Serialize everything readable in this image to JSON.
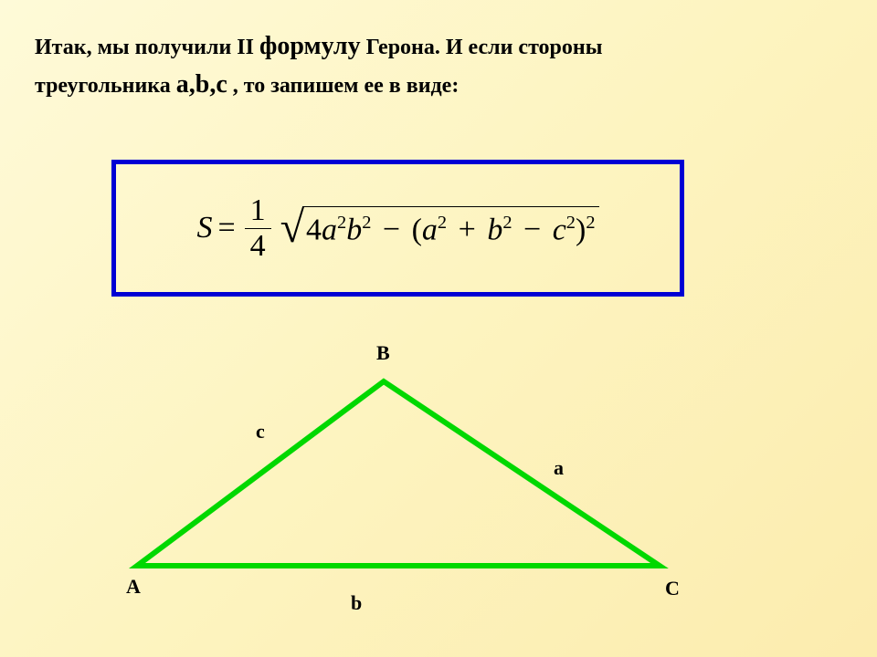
{
  "intro": {
    "line1_a": "Итак, мы получили II ",
    "line1_b": "формулу",
    "line1_c": " Герона. И если стороны",
    "line2_a": "треугольника ",
    "line2_b": "a,b,c",
    "line2_c": " , то запишем ее в виде:"
  },
  "formula": {
    "S": "S",
    "eq": "=",
    "frac_num": "1",
    "frac_den": "4",
    "coef": "4",
    "a": "a",
    "b": "b",
    "c": "c",
    "sq": "2",
    "minus": "−",
    "plus": "+",
    "lp": "(",
    "rp": ")"
  },
  "formula_box": {
    "border_color": "#0000d4",
    "border_width": 5
  },
  "triangle": {
    "stroke_color": "#00d800",
    "stroke_width": 6,
    "points": {
      "A": [
        20,
        250
      ],
      "B": [
        290,
        48
      ],
      "C": [
        592,
        250
      ]
    },
    "vertex_labels": {
      "A": "A",
      "B": "B",
      "C": "C"
    },
    "side_labels": {
      "a": "a",
      "b": "b",
      "c": "c"
    },
    "label_positions": {
      "A": [
        8,
        260
      ],
      "B": [
        282,
        4
      ],
      "C": [
        598,
        262
      ],
      "c": [
        150,
        90
      ],
      "a": [
        476,
        130
      ],
      "b": [
        254,
        278
      ]
    }
  },
  "colors": {
    "text": "#000000",
    "bg_start": "#fefad8",
    "bg_end": "#fcecae"
  }
}
